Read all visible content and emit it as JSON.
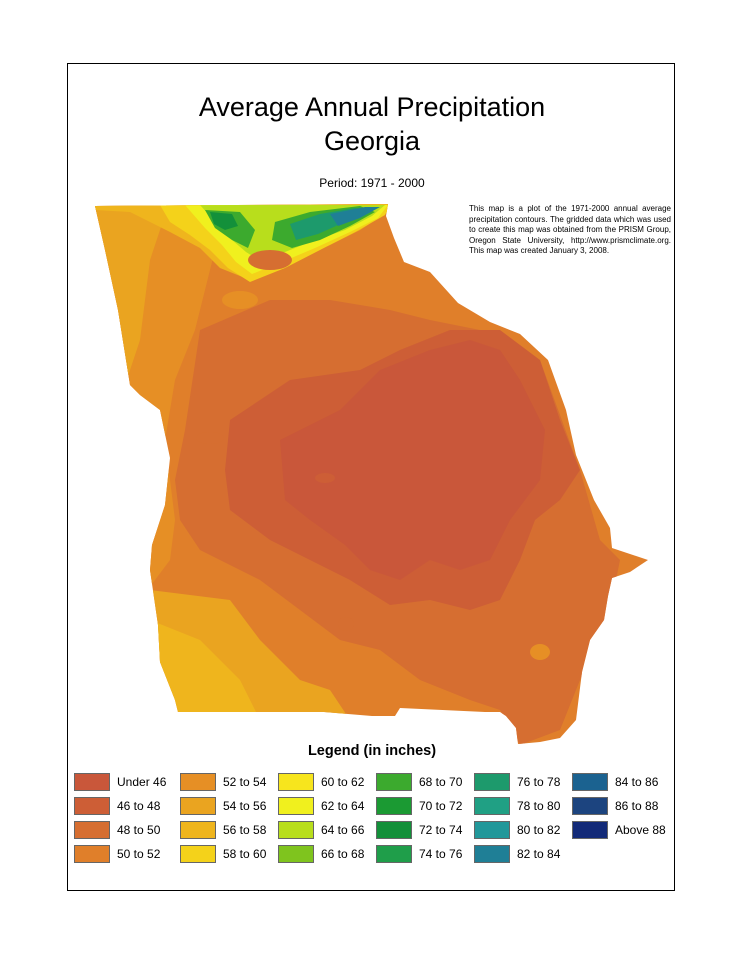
{
  "title_line1": "Average Annual Precipitation",
  "title_line2": "Georgia",
  "period": "Period: 1971 - 2000",
  "note": "This map is a plot of the 1971-2000 annual average precipitation contours.  The gridded data which was used to create this map was obtained from the PRISM Group, Oregon State University, http://www.prismclimate.org.   This map was created January 3, 2008.",
  "legend_title": "Legend (in inches)",
  "legend": [
    {
      "label": "Under 46",
      "color": "#c9573a"
    },
    {
      "label": "46 to 48",
      "color": "#cd5e36"
    },
    {
      "label": "48 to 50",
      "color": "#d66e31"
    },
    {
      "label": "50 to 52",
      "color": "#e07f2a"
    },
    {
      "label": "52 to 54",
      "color": "#e68f25"
    },
    {
      "label": "54 to 56",
      "color": "#eaa420"
    },
    {
      "label": "56 to 58",
      "color": "#efb51d"
    },
    {
      "label": "58 to 60",
      "color": "#f4d21a"
    },
    {
      "label": "60 to 62",
      "color": "#f7e51d"
    },
    {
      "label": "62 to 64",
      "color": "#f0f01e"
    },
    {
      "label": "64 to 66",
      "color": "#b8de1c"
    },
    {
      "label": "66 to 68",
      "color": "#7fc41e"
    },
    {
      "label": "68 to 70",
      "color": "#3caa2e"
    },
    {
      "label": "70 to 72",
      "color": "#1b9a33"
    },
    {
      "label": "72 to 74",
      "color": "#13903a"
    },
    {
      "label": "74 to 76",
      "color": "#1f9e4a"
    },
    {
      "label": "76 to 78",
      "color": "#1d9a6c"
    },
    {
      "label": "78 to 80",
      "color": "#20a084"
    },
    {
      "label": "80 to 82",
      "color": "#22989a"
    },
    {
      "label": "82 to 84",
      "color": "#1f7f96"
    },
    {
      "label": "84 to 86",
      "color": "#1b6290"
    },
    {
      "label": "86 to 88",
      "color": "#1c447f"
    },
    {
      "label": "Above 88",
      "color": "#132a78"
    }
  ]
}
